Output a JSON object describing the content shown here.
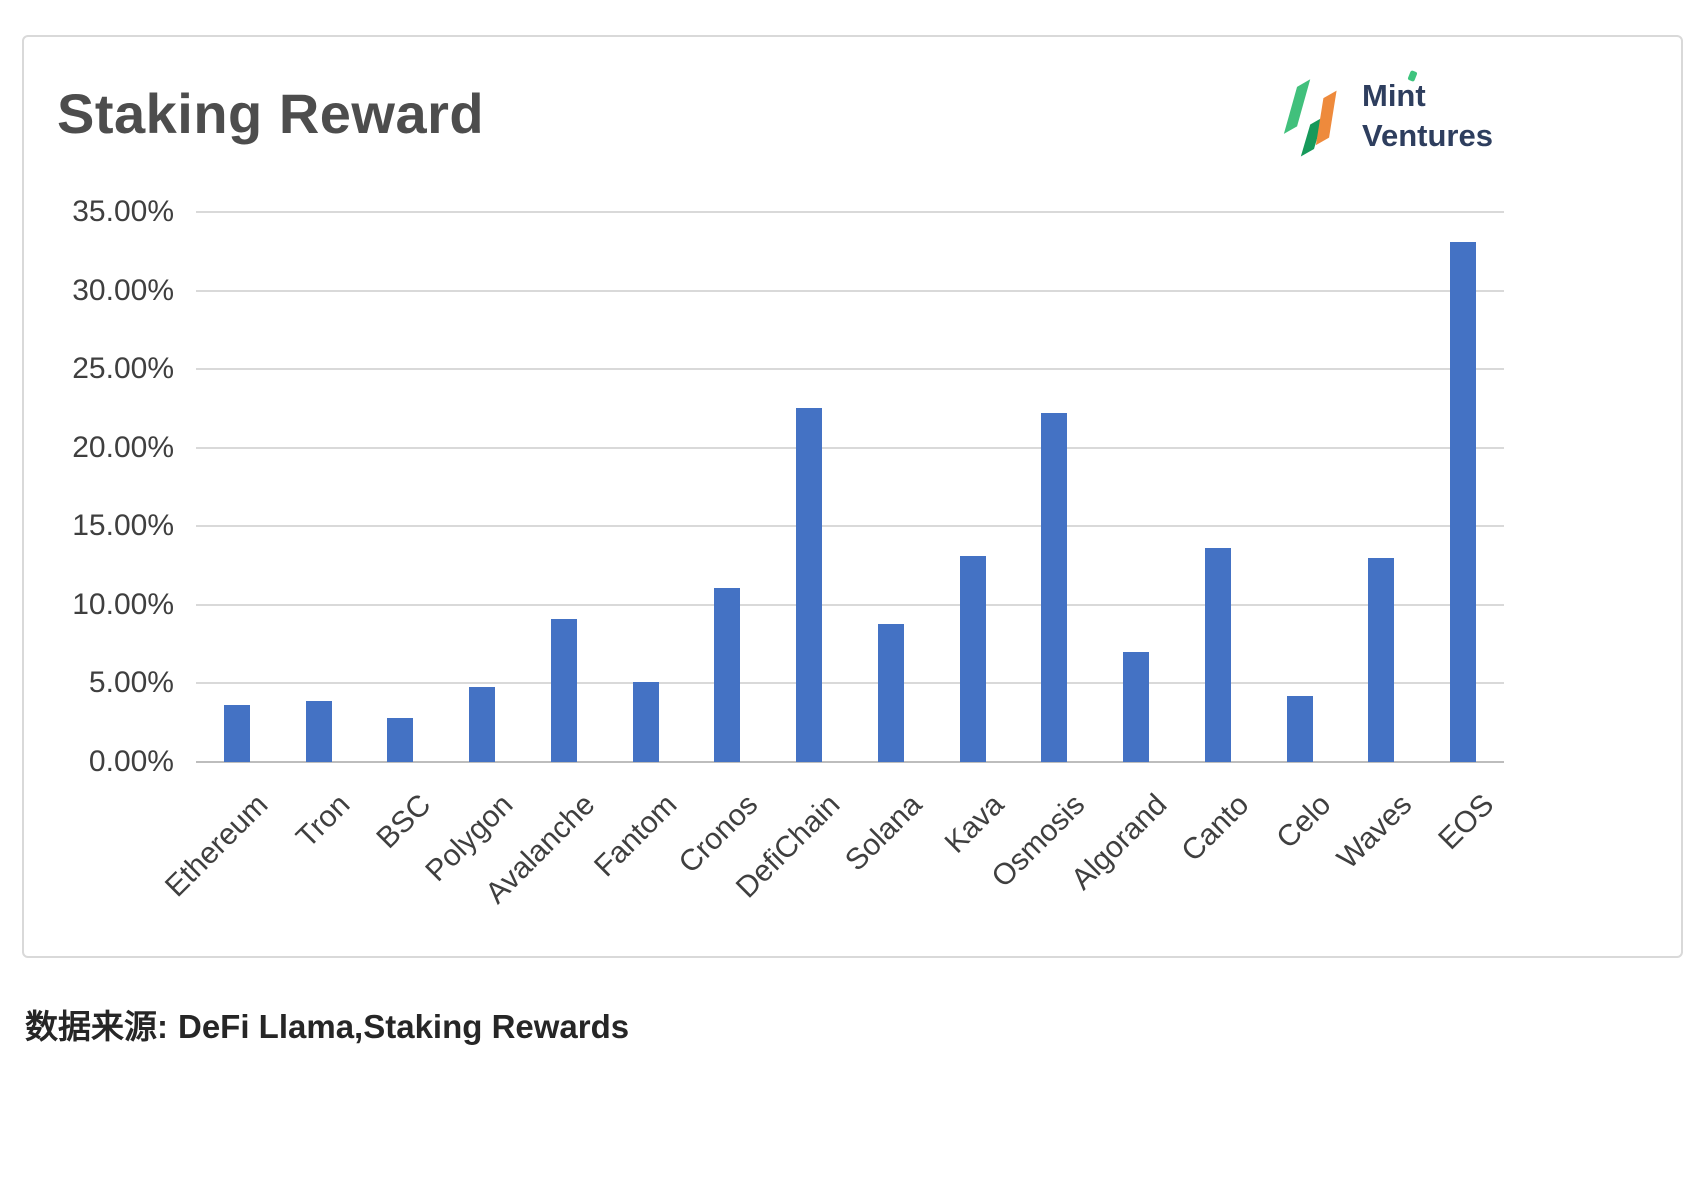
{
  "header": {
    "title": "Staking Reward"
  },
  "logo": {
    "name_line1": "Mint",
    "name_line2": "Ventures",
    "colors": {
      "green_light": "#41c07c",
      "green_dark": "#16995a",
      "orange": "#ee8a3c",
      "text": "#2e3e5e"
    }
  },
  "footer": {
    "source_label": "数据来源:",
    "source_text": "DeFi Llama,Staking Rewards"
  },
  "chart_data": {
    "type": "bar",
    "title": "Staking Reward",
    "categories": [
      "Ethereum",
      "Tron",
      "BSC",
      "Polygon",
      "Avalanche",
      "Fantom",
      "Cronos",
      "DefiChain",
      "Solana",
      "Kava",
      "Osmosis",
      "Algorand",
      "Canto",
      "Celo",
      "Waves",
      "EOS"
    ],
    "values": [
      3.6,
      3.9,
      2.8,
      4.8,
      9.1,
      5.1,
      11.1,
      22.5,
      8.8,
      13.1,
      22.2,
      7.0,
      13.6,
      4.2,
      13.0,
      33.1
    ],
    "unit": "%",
    "bar_color": "#4472c4",
    "xlabel": "",
    "ylabel": "",
    "ylim": [
      0,
      35
    ],
    "yticks": [
      {
        "value": 0,
        "label": "0.00%"
      },
      {
        "value": 5,
        "label": "5.00%"
      },
      {
        "value": 10,
        "label": "10.00%"
      },
      {
        "value": 15,
        "label": "15.00%"
      },
      {
        "value": 20,
        "label": "20.00%"
      },
      {
        "value": 25,
        "label": "25.00%"
      },
      {
        "value": 30,
        "label": "30.00%"
      },
      {
        "value": 35,
        "label": "35.00%"
      }
    ],
    "grid": true,
    "gridline_color": "#d9d9d9",
    "legend": "none",
    "x_label_rotation": -45
  }
}
